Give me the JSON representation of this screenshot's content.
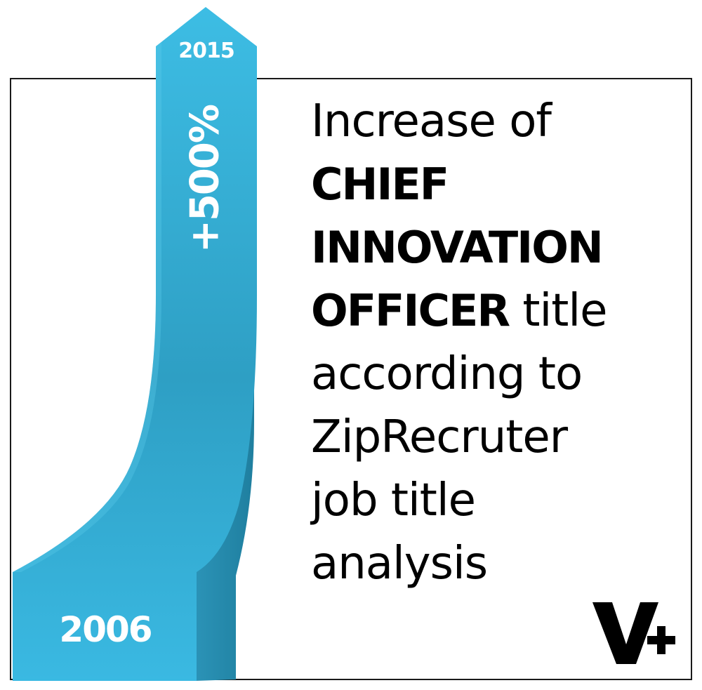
{
  "arrow": {
    "start_year": "2006",
    "end_year": "2015",
    "increase": "+500%",
    "color_light": "#36b8e0",
    "color_dark": "#2388a8"
  },
  "headline": {
    "line1": "Increase of",
    "line2_bold": "CHIEF",
    "line3_bold": "INNOVATION",
    "line4_bold": "OFFICER",
    "line4_rest": " title",
    "line5": "according to",
    "line6": "ZipRecruter",
    "line7": "job title",
    "line8": "analysis"
  },
  "logo": {
    "icon": "v-plus-logo",
    "text": "V+"
  }
}
